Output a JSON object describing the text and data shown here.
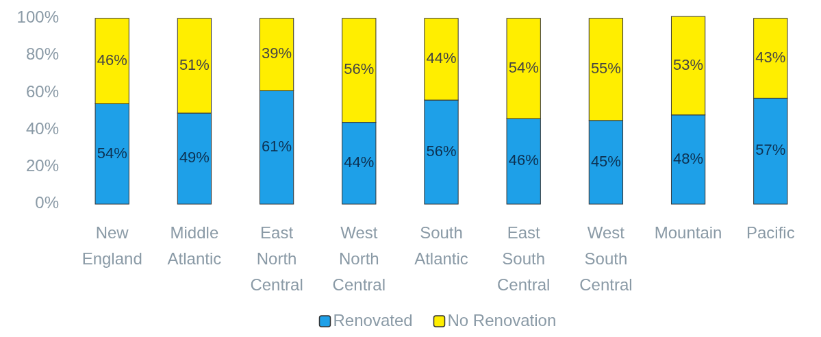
{
  "chart_data": {
    "type": "bar",
    "stacked": true,
    "categories": [
      "New England",
      "Middle Atlantic",
      "East North Central",
      "West North Central",
      "South Atlantic",
      "East South Central",
      "West South Central",
      "Mountain",
      "Pacific"
    ],
    "series": [
      {
        "name": "Renovated",
        "color": "#1ea0e8",
        "values": [
          54,
          49,
          61,
          44,
          56,
          46,
          45,
          48,
          57
        ],
        "value_labels": [
          "54%",
          "49%",
          "61%",
          "44%",
          "56%",
          "46%",
          "45%",
          "48%",
          "57%"
        ]
      },
      {
        "name": "No Renovation",
        "color": "#ffee00",
        "values": [
          46,
          51,
          39,
          56,
          44,
          54,
          55,
          53,
          43
        ],
        "value_labels": [
          "46%",
          "51%",
          "39%",
          "56%",
          "44%",
          "54%",
          "55%",
          "53%",
          "43%"
        ]
      }
    ],
    "ylim": [
      0,
      101
    ],
    "yticks": [
      {
        "value": 0,
        "label": "0%"
      },
      {
        "value": 20,
        "label": "20%"
      },
      {
        "value": 40,
        "label": "40%"
      },
      {
        "value": 60,
        "label": "60%"
      },
      {
        "value": 80,
        "label": "80%"
      },
      {
        "value": 100,
        "label": "100%"
      }
    ],
    "grid": false,
    "legend": "bottom"
  }
}
